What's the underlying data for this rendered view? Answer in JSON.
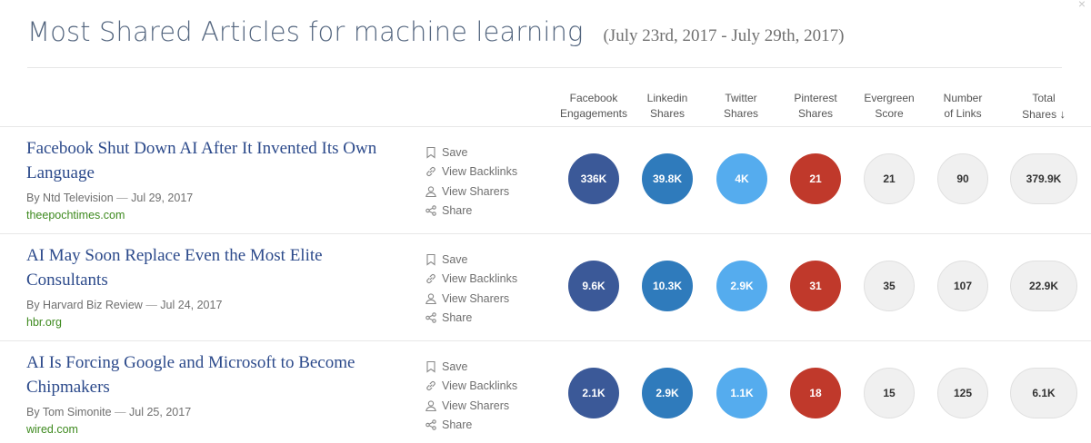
{
  "header": {
    "title": "Most Shared Articles for machine learning",
    "date_range": "(July 23rd, 2017 - July 29th, 2017)",
    "close_label": "×"
  },
  "columns": [
    {
      "line1": "Facebook",
      "line2": "Engagements"
    },
    {
      "line1": "Linkedin",
      "line2": "Shares"
    },
    {
      "line1": "Twitter",
      "line2": "Shares"
    },
    {
      "line1": "Pinterest",
      "line2": "Shares"
    },
    {
      "line1": "Evergreen",
      "line2": "Score"
    },
    {
      "line1": "Number",
      "line2": "of Links"
    },
    {
      "line1": "Total",
      "line2": "Shares",
      "sort_arrow": "↓"
    }
  ],
  "actions": {
    "save": "Save",
    "view_backlinks": "View Backlinks",
    "view_sharers": "View Sharers",
    "share": "Share"
  },
  "colors": {
    "facebook": "#3b5998",
    "linkedin": "#2f7bbc",
    "twitter": "#55acee",
    "pinterest": "#c0392b",
    "neutral": "#f0f0f0",
    "title_link": "#2c4a8b",
    "domain_link": "#3e8a1f"
  },
  "articles": [
    {
      "title": "Facebook Shut Down AI After It Invented Its Own Language",
      "author": "By Ntd Television",
      "date": "Jul 29, 2017",
      "domain": "theepochtimes.com",
      "facebook": "336K",
      "linkedin": "39.8K",
      "twitter": "4K",
      "pinterest": "21",
      "evergreen": "21",
      "links": "90",
      "total": "379.9K"
    },
    {
      "title": "AI May Soon Replace Even the Most Elite Consultants",
      "author": "By Harvard Biz Review",
      "date": "Jul 24, 2017",
      "domain": "hbr.org",
      "facebook": "9.6K",
      "linkedin": "10.3K",
      "twitter": "2.9K",
      "pinterest": "31",
      "evergreen": "35",
      "links": "107",
      "total": "22.9K"
    },
    {
      "title": "AI Is Forcing Google and Microsoft to Become Chipmakers",
      "author": "By Tom Simonite",
      "date": "Jul 25, 2017",
      "domain": "wired.com",
      "facebook": "2.1K",
      "linkedin": "2.9K",
      "twitter": "1.1K",
      "pinterest": "18",
      "evergreen": "15",
      "links": "125",
      "total": "6.1K"
    }
  ]
}
